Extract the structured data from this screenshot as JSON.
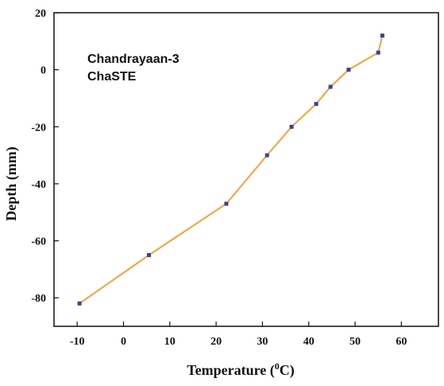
{
  "chart_data": {
    "type": "line",
    "xlabel": "Temperature (",
    "xlabel_sup": "0",
    "xlabel_tail": "C)",
    "ylabel": "Depth (mm)",
    "xlim": [
      -15,
      68
    ],
    "ylim": [
      -90,
      20
    ],
    "xticks": [
      -10,
      0,
      10,
      20,
      30,
      40,
      50,
      60
    ],
    "yticks": [
      20,
      0,
      -20,
      -40,
      -60,
      -80
    ],
    "annotations": [
      "Chandrayaan-3",
      "ChaSTE"
    ],
    "grid": false,
    "line_color": "#f4a23a",
    "marker_color": "#3b3f9c",
    "series": [
      {
        "x": [
          -9.5,
          5.5,
          22.2,
          31.0,
          36.3,
          41.6,
          44.7,
          48.6,
          55.0,
          55.9
        ],
        "y": [
          -82,
          -65,
          -47,
          -30,
          -20,
          -12,
          -6,
          0,
          6,
          12
        ]
      }
    ]
  }
}
